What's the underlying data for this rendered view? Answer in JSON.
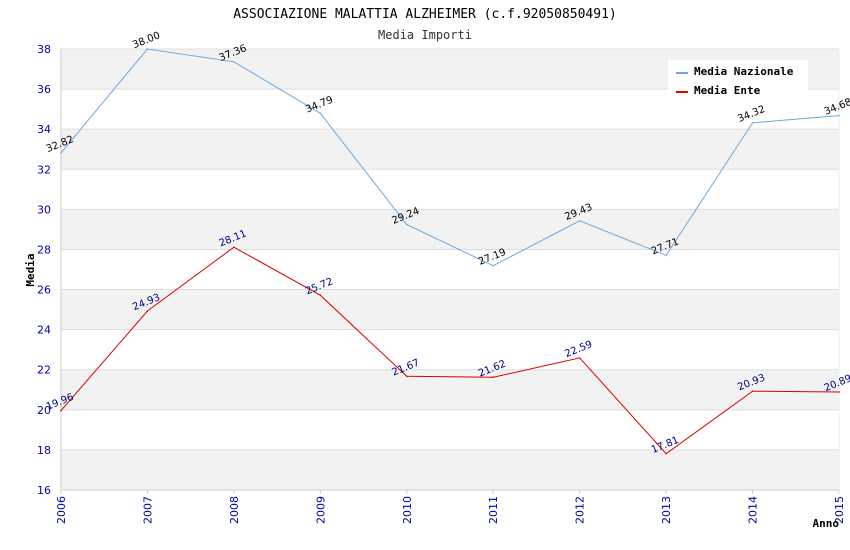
{
  "chart_data": {
    "type": "line",
    "title": "ASSOCIAZIONE MALATTIA ALZHEIMER (c.f.92050850491)",
    "subtitle": "Media Importi",
    "xlabel": "Anno",
    "ylabel": "Media",
    "x": [
      "2006",
      "2007",
      "2008",
      "2009",
      "2010",
      "2011",
      "2012",
      "2013",
      "2014",
      "2015"
    ],
    "ylim": [
      16,
      38
    ],
    "yticks": [
      "16",
      "18",
      "20",
      "22",
      "24",
      "26",
      "28",
      "30",
      "32",
      "34",
      "36",
      "38"
    ],
    "grid": true,
    "legend_position": "top-right",
    "series": [
      {
        "name": "Media Nazionale",
        "color": "#6aa8e0",
        "values": [
          32.82,
          38.0,
          37.36,
          34.79,
          29.24,
          27.19,
          29.43,
          27.71,
          34.32,
          34.68
        ],
        "labels": [
          "32.82",
          "38.00",
          "37.36",
          "34.79",
          "29.24",
          "27.19",
          "29.43",
          "27.71",
          "34.32",
          "34.68"
        ],
        "label_color": "#000000"
      },
      {
        "name": "Media Ente",
        "color": "#dd0000",
        "values": [
          19.96,
          24.93,
          28.11,
          25.72,
          21.67,
          21.62,
          22.59,
          17.81,
          20.93,
          20.89
        ],
        "labels": [
          "19.96",
          "24.93",
          "28.11",
          "25.72",
          "21.67",
          "21.62",
          "22.59",
          "17.81",
          "20.93",
          "20.89"
        ],
        "label_color": "#000080"
      }
    ]
  }
}
